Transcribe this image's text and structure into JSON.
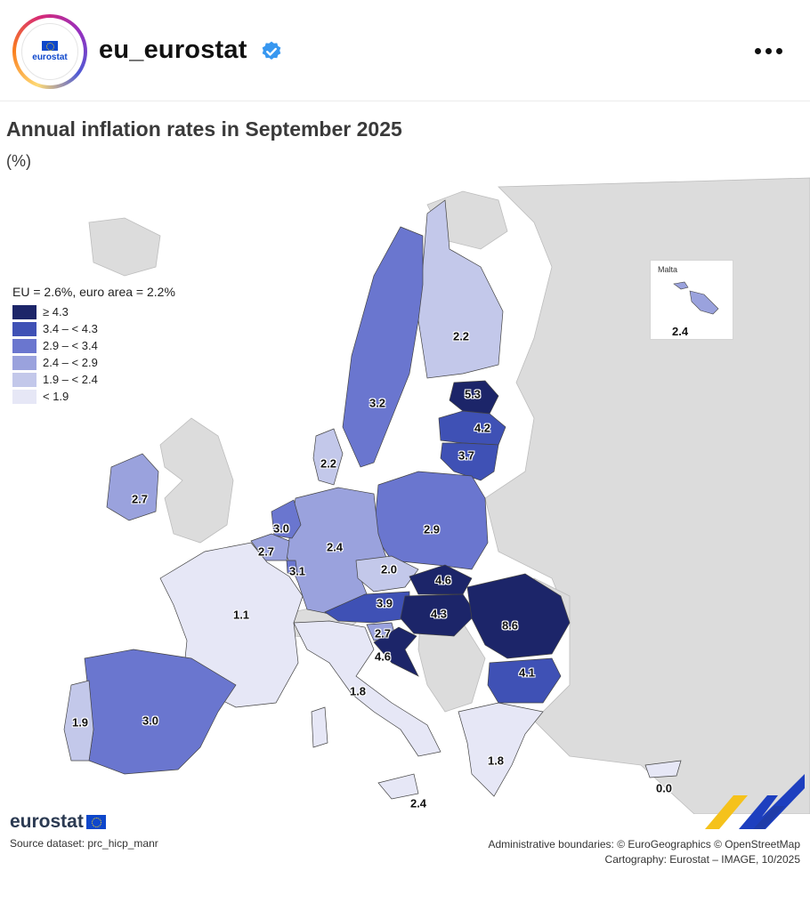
{
  "post": {
    "username": "eu_eurostat",
    "avatar_text": "eurostat",
    "verified_icon": "verified-badge-icon",
    "more_icon": "more-options-icon"
  },
  "map": {
    "title": "Annual inflation rates in September 2025",
    "unit": "(%)",
    "legend": {
      "title": "EU = 2.6%, euro area = 2.2%",
      "classes": [
        {
          "label": "≥ 4.3",
          "color": "#1c2569"
        },
        {
          "label": "3.4 – < 4.3",
          "color": "#3f51b5"
        },
        {
          "label": "2.9 – < 3.4",
          "color": "#6a76cf"
        },
        {
          "label": "2.4 – < 2.9",
          "color": "#9aa2dd"
        },
        {
          "label": "1.9 – < 2.4",
          "color": "#c3c8ea"
        },
        {
          "label": "< 1.9",
          "color": "#e6e7f6"
        }
      ]
    },
    "inset": {
      "name": "Malta",
      "value": "2.4"
    },
    "values": {
      "finland": "2.2",
      "estonia": "5.3",
      "latvia": "4.2",
      "lithuania": "3.7",
      "sweden": "3.2",
      "denmark": "2.2",
      "ireland": "2.7",
      "netherlands": "3.0",
      "belgium": "2.7",
      "luxembourg": "3.1",
      "germany": "2.4",
      "poland": "2.9",
      "czechia": "2.0",
      "slovakia": "4.6",
      "hungary": "4.3",
      "romania": "8.6",
      "austria": "3.9",
      "slovenia": "2.7",
      "croatia": "4.6",
      "france": "1.1",
      "italy": "1.8",
      "spain": "3.0",
      "portugal": "1.9",
      "bulgaria": "4.1",
      "greece": "1.8",
      "cyprus": "0.0",
      "malta_main": "2.4"
    },
    "footer": {
      "logo": "eurostat",
      "source": "Source dataset: prc_hicp_manr",
      "credits_line1": "Administrative boundaries: © EuroGeographics © OpenStreetMap",
      "credits_line2": "Cartography: Eurostat – IMAGE, 10/2025"
    }
  }
}
